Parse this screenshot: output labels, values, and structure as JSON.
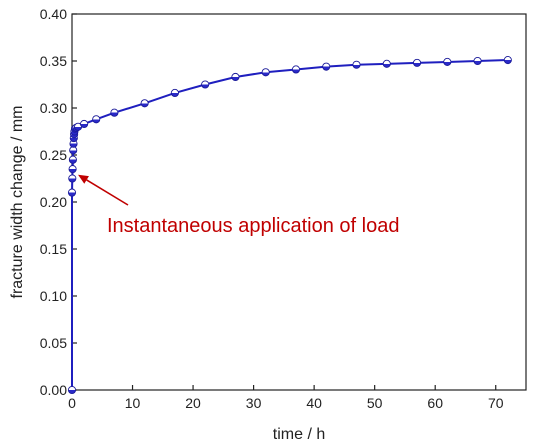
{
  "chart_data": {
    "type": "line",
    "title": "",
    "xlabel": "time / h",
    "ylabel": "fracture width change / mm",
    "xlim": [
      0,
      75
    ],
    "ylim": [
      0,
      0.4
    ],
    "xticks": [
      "0",
      "10",
      "20",
      "30",
      "40",
      "50",
      "60",
      "70"
    ],
    "yticks": [
      "0.00",
      "0.05",
      "0.10",
      "0.15",
      "0.20",
      "0.25",
      "0.30",
      "0.35",
      "0.40"
    ],
    "grid": false,
    "legend": "none",
    "series": [
      {
        "color": "#1f1fbf",
        "marker": "circle",
        "points": [
          [
            0,
            0
          ],
          [
            0,
            0.21
          ],
          [
            0.05,
            0.225
          ],
          [
            0.1,
            0.235
          ],
          [
            0.15,
            0.245
          ],
          [
            0.2,
            0.255
          ],
          [
            0.25,
            0.262
          ],
          [
            0.3,
            0.268
          ],
          [
            0.35,
            0.272
          ],
          [
            0.4,
            0.275
          ],
          [
            0.5,
            0.278
          ],
          [
            0.7,
            0.279
          ],
          [
            1,
            0.28
          ],
          [
            2,
            0.283
          ],
          [
            4,
            0.288
          ],
          [
            7,
            0.295
          ],
          [
            12,
            0.305
          ],
          [
            17,
            0.316
          ],
          [
            22,
            0.325
          ],
          [
            27,
            0.333
          ],
          [
            32,
            0.338
          ],
          [
            37,
            0.341
          ],
          [
            42,
            0.344
          ],
          [
            47,
            0.346
          ],
          [
            52,
            0.347
          ],
          [
            57,
            0.348
          ],
          [
            62,
            0.349
          ],
          [
            67,
            0.35
          ],
          [
            72,
            0.351
          ]
        ]
      }
    ],
    "annotations": [
      {
        "text": "Instantaneous application of load",
        "color": "#c00000",
        "arrow_to": [
          1,
          0.229
        ]
      }
    ]
  }
}
